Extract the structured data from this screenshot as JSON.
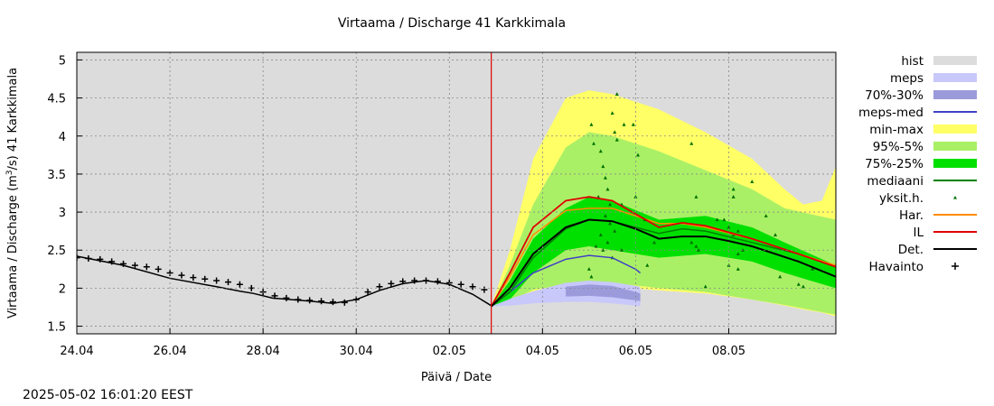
{
  "chart_data": {
    "type": "line",
    "title": "Virtaama / Discharge  41 Karkkimala",
    "xlabel": "Päivä / Date",
    "ylabel": "Virtaama / Discharge (m³/s)  41 Karkkimala",
    "ylabel_parts": {
      "pre": "Virtaama / Discharge (m",
      "sup": "3",
      "post": "/s)  41 Karkkimala"
    },
    "ylim": [
      1.4,
      5.1
    ],
    "yticks": [
      "1.5",
      "2",
      "2.5",
      "3",
      "3.5",
      "4",
      "4.5",
      "5"
    ],
    "xlim_days": [
      0,
      16.3
    ],
    "xticks": [
      "24.04",
      "26.04",
      "28.04",
      "30.04",
      "02.05",
      "04.05",
      "06.05",
      "08.05"
    ],
    "grid": true,
    "forecast_start": "2025-05-02 16:00",
    "legend_position": "right",
    "legend": [
      {
        "label": "hist",
        "color": "#dcdcdc",
        "kind": "band"
      },
      {
        "label": "meps",
        "color": "#c8c8fa",
        "kind": "band"
      },
      {
        "label": "70%-30%",
        "color": "#9b9bdb",
        "kind": "band"
      },
      {
        "label": "meps-med",
        "color": "#4040c8",
        "kind": "line"
      },
      {
        "label": "min-max",
        "color": "#ffff66",
        "kind": "band"
      },
      {
        "label": "95%-5%",
        "color": "#aaf066",
        "kind": "band"
      },
      {
        "label": "75%-25%",
        "color": "#00e000",
        "kind": "band"
      },
      {
        "label": "mediaani",
        "color": "#008000",
        "kind": "line"
      },
      {
        "label": "yksit.h.",
        "color": "#007000",
        "kind": "point"
      },
      {
        "label": "Har.",
        "color": "#ff8c00",
        "kind": "line"
      },
      {
        "label": "IL",
        "color": "#e00000",
        "kind": "line"
      },
      {
        "label": "Det.",
        "color": "#000000",
        "kind": "line"
      },
      {
        "label": "Havainto",
        "color": "#000000",
        "kind": "cross"
      }
    ],
    "series": [
      {
        "name": "hist",
        "x_days": [
          0,
          16.3
        ],
        "upper": [
          5.1,
          5.1
        ],
        "lower": [
          1.4,
          1.4
        ]
      },
      {
        "name": "Havainto",
        "x_days": [
          0,
          0.25,
          0.5,
          0.75,
          1.0,
          1.25,
          1.5,
          1.75,
          2.0,
          2.25,
          2.5,
          2.75,
          3.0,
          3.25,
          3.5,
          3.75,
          4.0,
          4.25,
          4.5,
          4.75,
          5.0,
          5.25,
          5.5,
          5.75,
          6.0,
          6.25,
          6.5,
          6.75,
          7.0,
          7.25,
          7.5,
          7.75,
          8.0,
          8.25,
          8.5,
          8.75,
          9.0,
          9.25,
          9.5,
          9.75,
          10.0,
          10.25,
          10.5,
          10.75,
          11.0,
          11.25,
          11.5,
          11.75,
          12.0,
          12.25,
          12.5,
          12.75,
          13.0,
          13.25,
          13.5,
          13.75,
          14.0,
          14.25,
          14.5,
          14.75,
          15.0,
          15.25,
          15.5,
          15.75,
          16.0
        ],
        "values": [
          2.4,
          2.39,
          2.38,
          2.35,
          2.32,
          2.3,
          2.28,
          2.25,
          2.2,
          2.17,
          2.14,
          2.12,
          2.1,
          2.08,
          2.05,
          2.0,
          1.95,
          1.9,
          1.87,
          1.85,
          1.84,
          1.83,
          1.82,
          1.81,
          1.85,
          1.95,
          2.02,
          2.06,
          2.09,
          2.1,
          2.1,
          2.09,
          2.07,
          2.05,
          2.02,
          1.98,
          1.95,
          1.9,
          1.87,
          1.83,
          1.8,
          1.77,
          1.76,
          1.75,
          1.75,
          1.74,
          1.74,
          1.74,
          1.74,
          1.74,
          1.74,
          1.74,
          1.74,
          1.74,
          1.74,
          1.74,
          1.74,
          1.74,
          1.74,
          1.74,
          1.74,
          1.74,
          1.74,
          1.74,
          1.74
        ],
        "observed_until_day": 8.9
      },
      {
        "name": "Det. (historical simulation)",
        "x_days": [
          0,
          1,
          2,
          3,
          3.5,
          3.8,
          4.2,
          5,
          5.5,
          6,
          6.5,
          7,
          7.5,
          8,
          8.5,
          8.9
        ],
        "values": [
          2.42,
          2.3,
          2.13,
          2.02,
          1.96,
          1.93,
          1.87,
          1.83,
          1.8,
          1.85,
          1.97,
          2.06,
          2.1,
          2.05,
          1.92,
          1.77
        ]
      },
      {
        "name": "min-max",
        "x_days": [
          8.9,
          9.3,
          9.8,
          10.5,
          11,
          11.5,
          12.5,
          13.5,
          14.5,
          15.2,
          15.6,
          16.0,
          16.3
        ],
        "upper": [
          1.76,
          2.5,
          3.7,
          4.5,
          4.6,
          4.55,
          4.35,
          4.05,
          3.7,
          3.3,
          3.1,
          3.15,
          3.6
        ],
        "lower": [
          1.76,
          1.82,
          1.95,
          2.0,
          2.02,
          2.02,
          1.97,
          1.93,
          1.85,
          1.77,
          1.72,
          1.68,
          1.63
        ]
      },
      {
        "name": "95%-5%",
        "x_days": [
          8.9,
          9.3,
          9.8,
          10.5,
          11,
          11.5,
          12.5,
          13.5,
          14.5,
          15.2,
          16.3
        ],
        "upper": [
          1.76,
          2.3,
          3.1,
          3.85,
          4.05,
          4.0,
          3.8,
          3.55,
          3.3,
          3.05,
          2.9
        ],
        "lower": [
          1.76,
          1.83,
          1.98,
          2.05,
          2.08,
          2.07,
          2.0,
          1.95,
          1.85,
          1.78,
          1.65
        ]
      },
      {
        "name": "75%-25%",
        "x_days": [
          8.9,
          9.3,
          9.8,
          10.5,
          11,
          11.5,
          12.5,
          13.5,
          14.5,
          15.2,
          16.3
        ],
        "upper": [
          1.76,
          2.1,
          2.65,
          3.05,
          3.2,
          3.15,
          2.9,
          2.95,
          2.8,
          2.6,
          2.3
        ],
        "lower": [
          1.76,
          1.85,
          2.2,
          2.5,
          2.55,
          2.5,
          2.4,
          2.45,
          2.35,
          2.2,
          2.0
        ]
      },
      {
        "name": "meps",
        "x_days": [
          8.9,
          9.3,
          9.8,
          10.5,
          11,
          11.5,
          12,
          12.1
        ],
        "upper": [
          1.76,
          1.86,
          1.96,
          2.07,
          2.1,
          2.08,
          2.03,
          2.02
        ],
        "lower": [
          1.76,
          1.77,
          1.8,
          1.82,
          1.82,
          1.8,
          1.77,
          1.76
        ]
      },
      {
        "name": "70%-30%",
        "x_days": [
          10.5,
          11,
          11.5,
          12,
          12.1
        ],
        "upper": [
          2.02,
          2.05,
          2.03,
          1.95,
          1.93
        ],
        "lower": [
          1.89,
          1.9,
          1.88,
          1.84,
          1.83
        ]
      },
      {
        "name": "meps-med",
        "x_days": [
          8.9,
          9.3,
          9.8,
          10.5,
          11,
          11.5,
          12,
          12.1
        ],
        "values": [
          1.76,
          1.95,
          2.2,
          2.38,
          2.43,
          2.4,
          2.25,
          2.2
        ]
      },
      {
        "name": "mediaani",
        "x_days": [
          8.9,
          9.3,
          9.8,
          10.5,
          11,
          11.5,
          12.5,
          13,
          13.5,
          14.5,
          15.5,
          16.3
        ],
        "values": [
          1.76,
          1.95,
          2.4,
          2.78,
          2.9,
          2.88,
          2.72,
          2.78,
          2.75,
          2.6,
          2.45,
          2.28
        ]
      },
      {
        "name": "Har.",
        "x_days": [
          8.9,
          9.3,
          9.8,
          10.5,
          11,
          11.5,
          12.5,
          13,
          13.5,
          14.5,
          15.5,
          16.3
        ],
        "values": [
          1.76,
          2.15,
          2.7,
          3.02,
          3.05,
          3.05,
          2.85,
          2.85,
          2.8,
          2.65,
          2.45,
          2.3
        ]
      },
      {
        "name": "IL",
        "x_days": [
          8.9,
          9.3,
          9.8,
          10.5,
          11,
          11.5,
          12.5,
          13,
          13.5,
          14.5,
          15.5,
          16.3
        ],
        "values": [
          1.76,
          2.2,
          2.8,
          3.15,
          3.2,
          3.15,
          2.8,
          2.86,
          2.82,
          2.65,
          2.45,
          2.28
        ]
      },
      {
        "name": "Det.",
        "x_days": [
          8.9,
          9.3,
          9.8,
          10.5,
          11,
          11.5,
          12,
          12.5,
          13,
          13.5,
          14,
          14.5,
          15.5,
          16.3
        ],
        "values": [
          1.76,
          2.0,
          2.45,
          2.8,
          2.9,
          2.88,
          2.78,
          2.65,
          2.68,
          2.68,
          2.62,
          2.55,
          2.35,
          2.15
        ]
      }
    ],
    "yksit_h_points": [
      [
        11.05,
        4.15
      ],
      [
        11.1,
        3.9
      ],
      [
        11.25,
        3.8
      ],
      [
        11.3,
        3.6
      ],
      [
        11.35,
        3.45
      ],
      [
        11.4,
        3.3
      ],
      [
        11.2,
        3.2
      ],
      [
        11.45,
        3.1
      ],
      [
        11.5,
        4.3
      ],
      [
        11.55,
        4.05
      ],
      [
        11.6,
        3.95
      ],
      [
        11.35,
        2.95
      ],
      [
        11.45,
        2.85
      ],
      [
        11.55,
        2.75
      ],
      [
        11.25,
        2.7
      ],
      [
        11.4,
        2.6
      ],
      [
        11.6,
        4.55
      ],
      [
        11.75,
        4.15
      ],
      [
        11.95,
        4.15
      ],
      [
        12.05,
        3.75
      ],
      [
        12.0,
        3.2
      ],
      [
        11.7,
        3.1
      ],
      [
        11.15,
        2.55
      ],
      [
        11.0,
        2.25
      ],
      [
        11.05,
        2.15
      ],
      [
        11.3,
        2.5
      ],
      [
        11.5,
        2.4
      ],
      [
        11.7,
        2.5
      ],
      [
        12.2,
        2.9
      ],
      [
        13.2,
        3.9
      ],
      [
        13.3,
        3.2
      ],
      [
        13.3,
        2.55
      ],
      [
        13.2,
        2.6
      ],
      [
        13.35,
        2.5
      ],
      [
        13.5,
        2.02
      ],
      [
        14.1,
        3.3
      ],
      [
        14.1,
        3.2
      ],
      [
        13.75,
        2.9
      ],
      [
        13.9,
        2.9
      ],
      [
        14.0,
        2.8
      ],
      [
        14.1,
        2.7
      ],
      [
        14.5,
        3.4
      ],
      [
        14.8,
        2.95
      ],
      [
        14.2,
        2.75
      ],
      [
        14.3,
        2.5
      ],
      [
        14.2,
        2.45
      ],
      [
        14.0,
        2.3
      ],
      [
        14.2,
        2.25
      ],
      [
        15.0,
        2.7
      ],
      [
        15.5,
        2.05
      ],
      [
        15.6,
        2.02
      ],
      [
        15.1,
        2.15
      ],
      [
        15.8,
        2.25
      ],
      [
        12.25,
        2.3
      ],
      [
        12.4,
        2.6
      ]
    ]
  },
  "timestamp": "2025-05-02 16:01:20 EEST"
}
